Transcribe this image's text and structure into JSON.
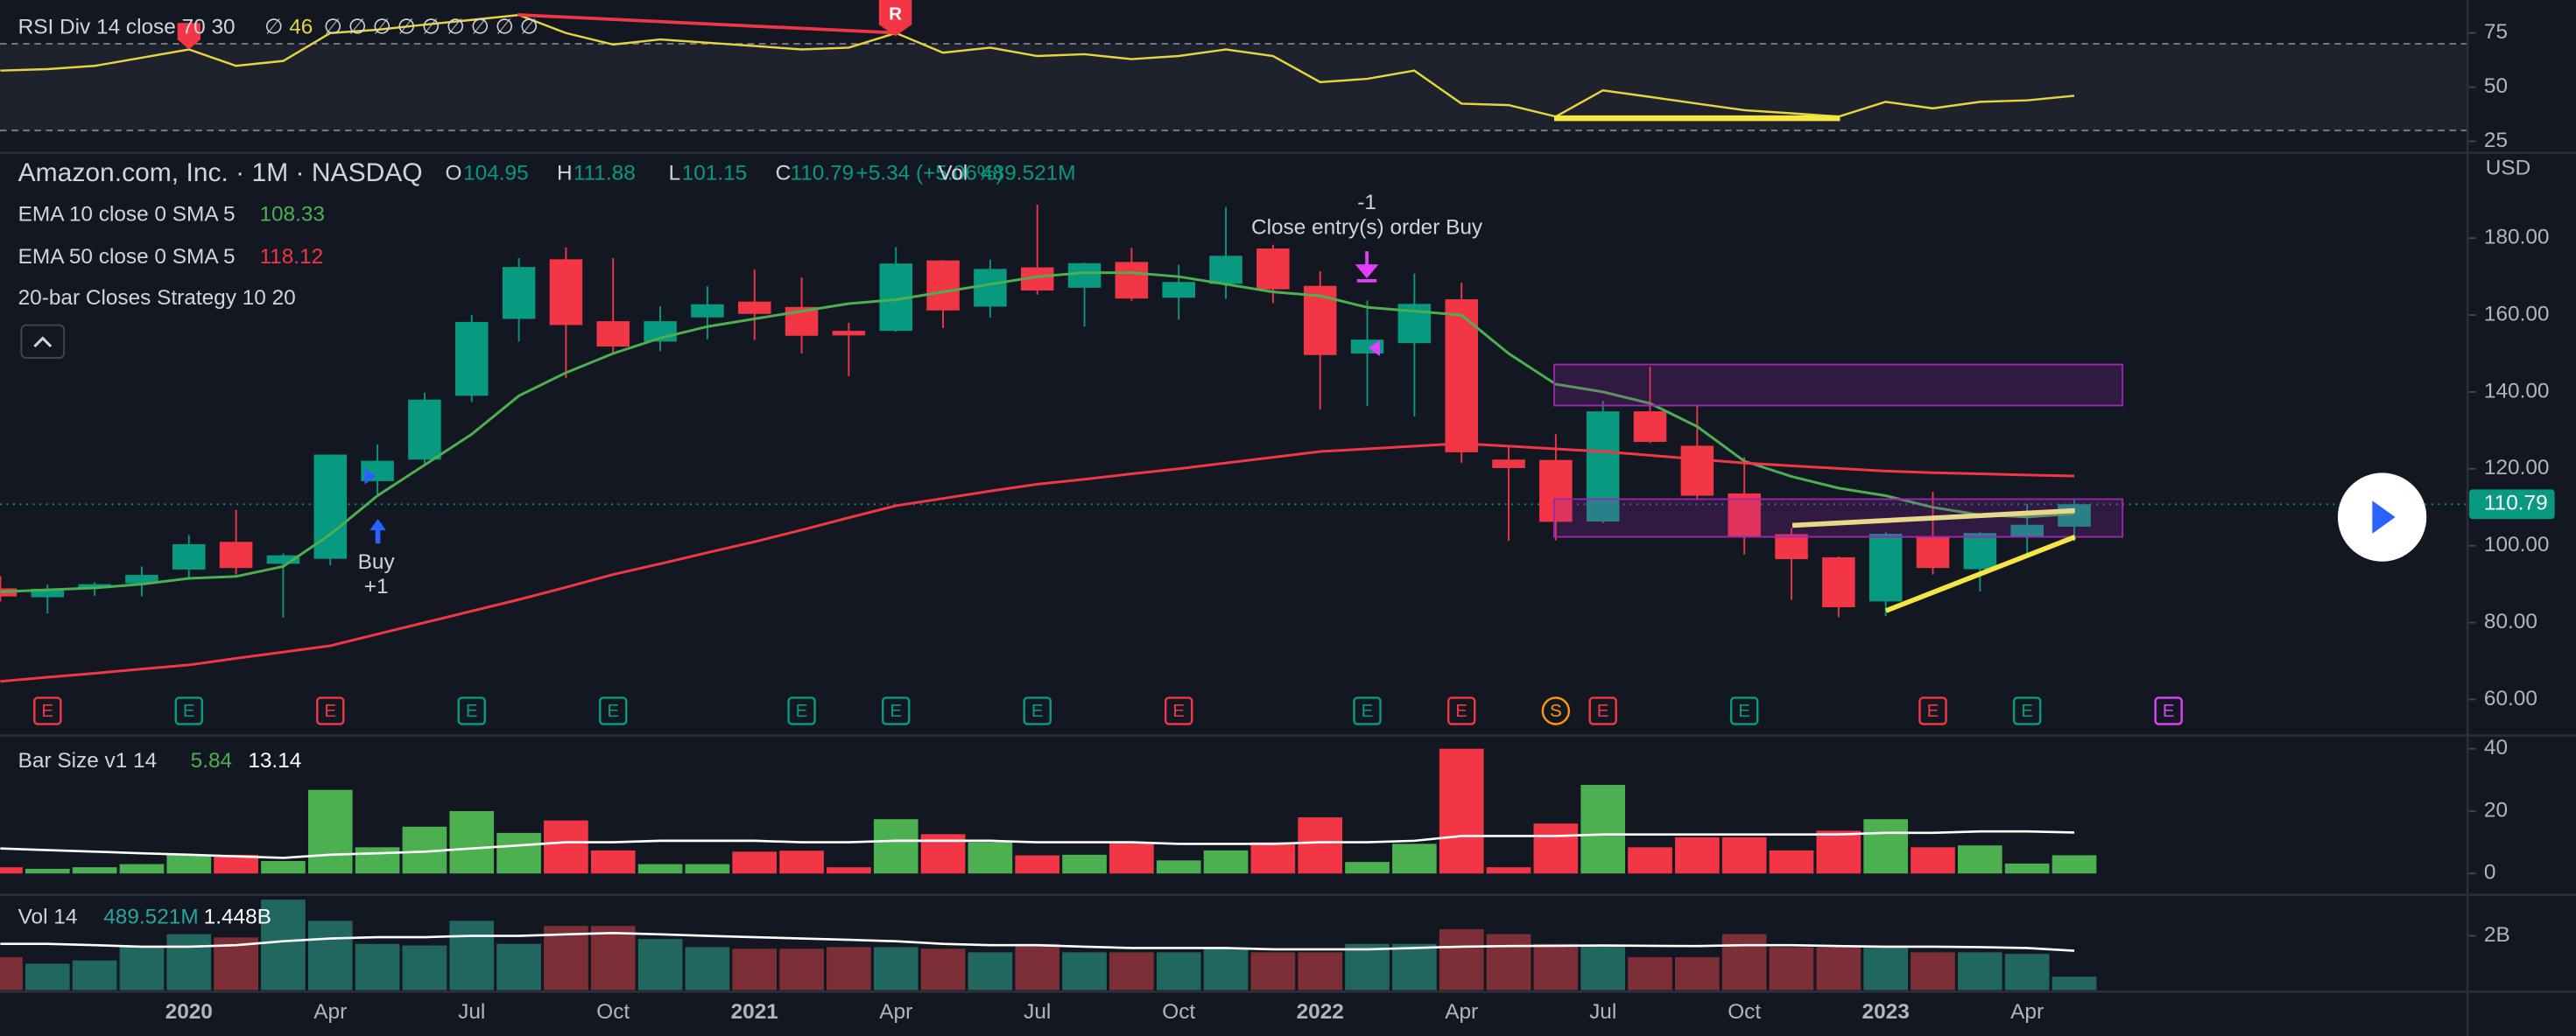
{
  "chart_data": [
    {
      "type": "line",
      "legend": "RSI Div 14 close 70 30",
      "na_before": "∅",
      "na_after": "∅ ∅ ∅ ∅ ∅ ∅ ∅ ∅ ∅",
      "color": "#e6d53c",
      "values": [
        57.6,
        58.3,
        59.8,
        63.6,
        67.4,
        59.8,
        62.1,
        75,
        76.5,
        78.8,
        81,
        83.3,
        75,
        69.7,
        72,
        70.5,
        69,
        67.4,
        68.2,
        75,
        65.9,
        68.2,
        64.4,
        65.2,
        62.9,
        64.4,
        67.4,
        64.4,
        52.3,
        53.8,
        57.6,
        42.4,
        41.7,
        36.4,
        48.5,
        45.5,
        42.4,
        39.4,
        37.9,
        36.4,
        43.2,
        40.2,
        43.2,
        43.9,
        46
      ],
      "ylim": [
        20.5,
        90.2
      ],
      "yticks": [
        25,
        50,
        75
      ],
      "bands": [
        30,
        70
      ],
      "annotations": [
        "R"
      ]
    },
    {
      "type": "candlestick",
      "title": "Amazon.com, Inc. · 1M · NASDAQ",
      "ohlc_labels": [
        "O",
        "H",
        "L",
        "C"
      ],
      "change": "+5.34 (+5.06%)",
      "volume_label": "Vol",
      "currency": "USD",
      "categories": [
        null,
        null,
        null,
        null,
        "2020",
        null,
        null,
        "Apr",
        null,
        null,
        "Jul",
        null,
        null,
        "Oct",
        null,
        null,
        "2021",
        null,
        null,
        "Apr",
        null,
        null,
        "Jul",
        null,
        null,
        "Oct",
        null,
        null,
        "2022",
        null,
        null,
        "Apr",
        null,
        null,
        "Jul",
        null,
        null,
        "Oct",
        null,
        null,
        "2023",
        null,
        null,
        "Apr",
        null
      ],
      "open": [
        88.9,
        86.6,
        89.1,
        90.2,
        93.8,
        101.0,
        95.3,
        96.6,
        116.8,
        122.4,
        139.0,
        159.0,
        174.5,
        158.4,
        153.1,
        159.4,
        163.5,
        162.1,
        155.9,
        155.9,
        174.2,
        162.2,
        172.4,
        167.1,
        173.8,
        164.5,
        168.1,
        177.3,
        167.6,
        150.0,
        152.7,
        164.1,
        122.4,
        122.3,
        106.3,
        134.96,
        126.0,
        113.6,
        103.0,
        96.99,
        85.5,
        102.5,
        93.9,
        102.3,
        104.95
      ],
      "high": [
        92.1,
        89.9,
        90.5,
        94.6,
        102.8,
        109.3,
        98.0,
        123.7,
        126.3,
        139.8,
        160.0,
        174.8,
        177.6,
        174.8,
        162.3,
        167.5,
        171.9,
        169.8,
        158.0,
        177.7,
        174.3,
        174.4,
        188.7,
        173.6,
        177.5,
        173.1,
        188.1,
        178.3,
        171.4,
        163.8,
        170.8,
        168.4,
        126.2,
        128.99,
        137.7,
        146.6,
        136.5,
        123.0,
        104.6,
        97.2,
        103.5,
        114.0,
        103.5,
        110.9,
        111.88
      ],
      "low": [
        85.5,
        82.4,
        87.0,
        86.8,
        91.5,
        92.5,
        81.3,
        94.9,
        112.8,
        121.2,
        137.4,
        153.1,
        143.6,
        150.1,
        150.6,
        153.7,
        153.5,
        150.0,
        144.1,
        155.7,
        156.6,
        159.3,
        165.3,
        157.0,
        163.7,
        158.8,
        164.2,
        163.1,
        135.4,
        136.3,
        133.6,
        121.6,
        101.3,
        101.4,
        105.9,
        126.7,
        112.1,
        97.7,
        85.9,
        81.4,
        81.7,
        92.5,
        88.1,
        97.7,
        101.15
      ],
      "close": [
        86.8,
        88.8,
        90.0,
        92.4,
        100.4,
        94.2,
        97.5,
        123.7,
        122.1,
        138.0,
        158.2,
        172.5,
        157.4,
        151.8,
        158.4,
        162.8,
        160.3,
        154.6,
        154.7,
        173.4,
        161.2,
        172.0,
        166.4,
        173.5,
        164.3,
        168.6,
        175.4,
        166.7,
        149.6,
        153.6,
        162.9,
        124.3,
        120.2,
        106.2,
        134.95,
        127.0,
        113.0,
        102.4,
        96.5,
        84.0,
        103.1,
        94.2,
        103.3,
        105.45,
        110.79
      ],
      "up_color": "#089981",
      "down_color": "#f23645",
      "lines": [
        {
          "name": "EMA 10 close 0 SMA 5",
          "color": "#4caf50",
          "values": [
            88,
            88.5,
            89,
            90,
            91.5,
            92,
            94.6,
            103,
            113,
            121,
            129,
            139,
            145,
            150,
            154,
            157,
            159,
            161,
            163,
            164,
            166,
            168,
            170,
            171,
            171,
            170,
            168,
            166,
            165,
            162,
            161,
            160,
            150,
            142,
            140,
            137,
            131,
            122,
            118,
            115,
            113,
            110,
            108,
            107.5,
            108.33
          ]
        },
        {
          "name": "EMA 50 close 0 SMA 5",
          "color": "#f23645",
          "values": [
            64.7,
            65.8,
            66.8,
            67.9,
            69,
            70.7,
            72.3,
            74,
            77,
            80,
            83,
            86,
            89.2,
            92.5,
            95.3,
            98.2,
            101,
            104.1,
            107.3,
            110.4,
            112.3,
            114.2,
            116,
            117.3,
            118.7,
            120,
            121.5,
            123,
            124.5,
            125.2,
            125.9,
            126.6,
            125.9,
            125.2,
            124.5,
            123.5,
            122.5,
            121.5,
            120.8,
            120.1,
            119.4,
            119,
            118.7,
            118.4,
            118.12
          ]
        }
      ],
      "strategy": "20-bar Closes Strategy 10 20",
      "ylim": [
        51.05,
        201.8
      ],
      "yticks": [
        {
          "value": 60,
          "label": "60.00"
        },
        {
          "value": 80,
          "label": "80.00"
        },
        {
          "value": 100,
          "label": "100.00"
        },
        {
          "value": 120,
          "label": "120.00"
        },
        {
          "value": 140,
          "label": "140.00"
        },
        {
          "value": 160,
          "label": "160.00"
        },
        {
          "value": 180,
          "label": "180.00"
        }
      ],
      "annotations": {
        "buy": "Buy",
        "buy_qty": "+1",
        "exit_qty": "-1",
        "exit": "Close entry(s) order Buy"
      },
      "events": {
        "labels": [
          "E",
          "E",
          "E",
          "E",
          "E",
          "E",
          "E",
          "E",
          "E",
          "E",
          "E",
          "S",
          "E",
          "E",
          "E",
          "E",
          "E"
        ],
        "colors": [
          "#f23645",
          "#089981",
          "#f23645",
          "#089981",
          "#089981",
          "#089981",
          "#089981",
          "#089981",
          "#f23645",
          "#089981",
          "#f23645",
          "#ff9800",
          "#f23645",
          "#089981",
          "#f23645",
          "#089981",
          "#e040fb"
        ]
      }
    },
    {
      "type": "bar",
      "legend": "Bar Size v1 14",
      "up_color": "#4caf50",
      "down_color": "#f23645",
      "values": [
        2,
        1.5,
        2,
        3,
        6,
        6,
        4,
        26.8,
        8.4,
        15,
        20,
        13,
        17,
        7.4,
        3,
        3,
        7,
        7.3,
        2,
        17.4,
        12.6,
        10,
        5.8,
        6,
        10,
        4.2,
        7.4,
        10,
        18,
        3.7,
        9.5,
        40,
        2,
        16,
        28.4,
        8.4,
        11.6,
        11.6,
        7.4,
        13.7,
        17.4,
        8.4,
        9,
        3.2,
        5.84
      ],
      "average": {
        "color": "#ffffff",
        "values": [
          8,
          7.5,
          7,
          6.5,
          6,
          5.5,
          5,
          6,
          6.5,
          7,
          8,
          9,
          10,
          10,
          10.5,
          10.5,
          10.5,
          10,
          10,
          10.5,
          10.5,
          10.5,
          10,
          10,
          10,
          9.5,
          9.5,
          9.5,
          10,
          10,
          10.5,
          12,
          12,
          12,
          12.5,
          12.5,
          12.5,
          12.5,
          12.5,
          12.5,
          13,
          13,
          13.5,
          13.5,
          13.14
        ]
      },
      "ylim": [
        -6.3,
        43.7
      ],
      "yticks": [
        0,
        20,
        40
      ]
    },
    {
      "type": "bar",
      "legend": "Vol 14",
      "legend_values": [
        "489.521M",
        "1.448B"
      ],
      "up_color": "#22675f",
      "down_color": "#7c2f36",
      "values": [
        1.21,
        0.97,
        1.09,
        1.58,
        2.06,
        1.94,
        3.33,
        2.55,
        1.7,
        1.64,
        2.55,
        1.7,
        2.36,
        2.36,
        1.88,
        1.58,
        1.52,
        1.52,
        1.58,
        1.58,
        1.52,
        1.39,
        1.7,
        1.39,
        1.39,
        1.39,
        1.52,
        1.39,
        1.39,
        1.7,
        1.7,
        2.24,
        2.06,
        1.7,
        1.64,
        1.21,
        1.21,
        2.06,
        1.58,
        1.58,
        1.58,
        1.39,
        1.39,
        1.33,
        0.489521
      ],
      "average": {
        "color": "#ffffff",
        "values": [
          1.7,
          1.7,
          1.65,
          1.6,
          1.6,
          1.65,
          1.8,
          1.9,
          1.95,
          1.95,
          2.0,
          2.0,
          2.05,
          2.1,
          2.05,
          2.0,
          1.95,
          1.9,
          1.85,
          1.8,
          1.7,
          1.65,
          1.65,
          1.6,
          1.55,
          1.55,
          1.55,
          1.5,
          1.5,
          1.5,
          1.55,
          1.6,
          1.62,
          1.63,
          1.64,
          1.63,
          1.62,
          1.65,
          1.65,
          1.62,
          1.6,
          1.6,
          1.58,
          1.55,
          1.448
        ]
      },
      "ylim": [
        0,
        3.45
      ],
      "yticks": [
        {
          "value": 2,
          "label": "2B"
        }
      ]
    }
  ]
}
